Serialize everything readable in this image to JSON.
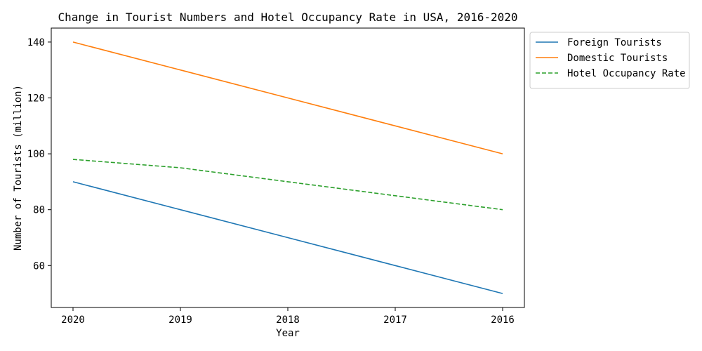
{
  "chart_data": {
    "type": "line",
    "title": "Change in Tourist Numbers and Hotel Occupancy Rate in USA, 2016-2020",
    "xlabel": "Year",
    "ylabel": "Number of Tourists (million)",
    "categories": [
      "2020",
      "2019",
      "2018",
      "2017",
      "2016"
    ],
    "ylim": [
      45,
      145
    ],
    "yticks": [
      60,
      80,
      100,
      120,
      140
    ],
    "grid": false,
    "legend_position": "outside upper-right",
    "series": [
      {
        "name": "Foreign Tourists",
        "values": [
          90,
          80,
          70,
          60,
          50
        ],
        "color": "#1f77b4",
        "style": "solid"
      },
      {
        "name": "Domestic Tourists",
        "values": [
          140,
          130,
          120,
          110,
          100
        ],
        "color": "#ff7f0e",
        "style": "solid"
      },
      {
        "name": "Hotel Occupancy Rate",
        "values": [
          98,
          95,
          90,
          85,
          80
        ],
        "color": "#2ca02c",
        "style": "dashed"
      }
    ]
  }
}
